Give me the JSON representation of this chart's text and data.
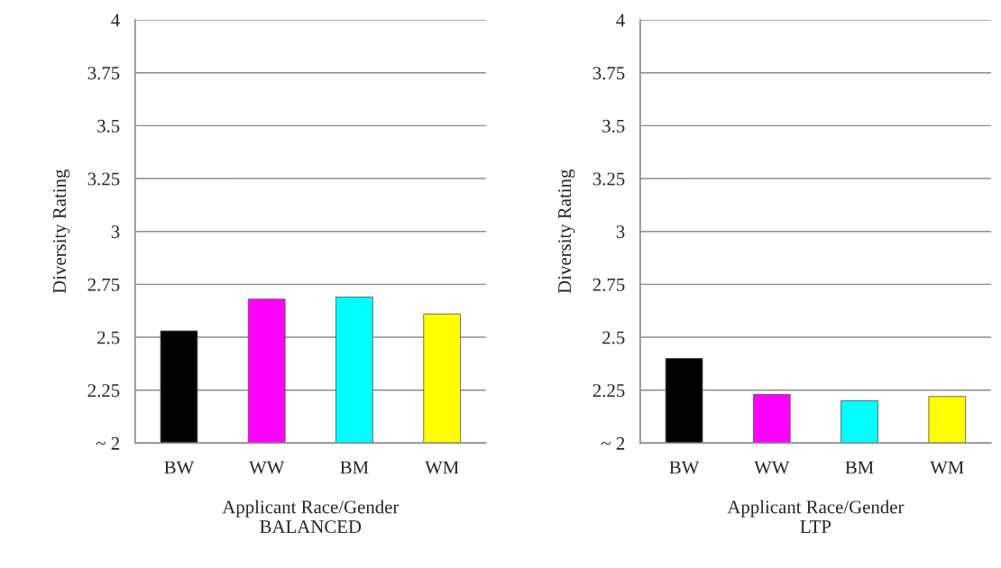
{
  "chart_data": [
    {
      "type": "bar",
      "xlabel": "Applicant Race/Gender\nBALANCED",
      "ylabel": "Diversity Rating",
      "categories": [
        "BW",
        "WW",
        "BM",
        "WM"
      ],
      "values": [
        2.53,
        2.68,
        2.69,
        2.61
      ],
      "colors": [
        "#000000",
        "#ff00ff",
        "#00ffff",
        "#ffff00"
      ],
      "ylim": [
        2,
        4
      ],
      "yticks": [
        {
          "value": 2,
          "label": "~ 2"
        },
        2.25,
        2.5,
        2.75,
        3,
        3.25,
        3.5,
        3.75,
        4
      ],
      "grid": "y"
    },
    {
      "type": "bar",
      "xlabel": "Applicant Race/Gender\nLTP",
      "ylabel": "Diversity Rating",
      "categories": [
        "BW",
        "WW",
        "BM",
        "WM"
      ],
      "values": [
        2.4,
        2.23,
        2.2,
        2.22
      ],
      "colors": [
        "#000000",
        "#ff00ff",
        "#00ffff",
        "#ffff00"
      ],
      "ylim": [
        2,
        4
      ],
      "yticks": [
        {
          "value": 2,
          "label": "~ 2"
        },
        2.25,
        2.5,
        2.75,
        3,
        3.25,
        3.5,
        3.75,
        4
      ],
      "grid": "y"
    }
  ]
}
